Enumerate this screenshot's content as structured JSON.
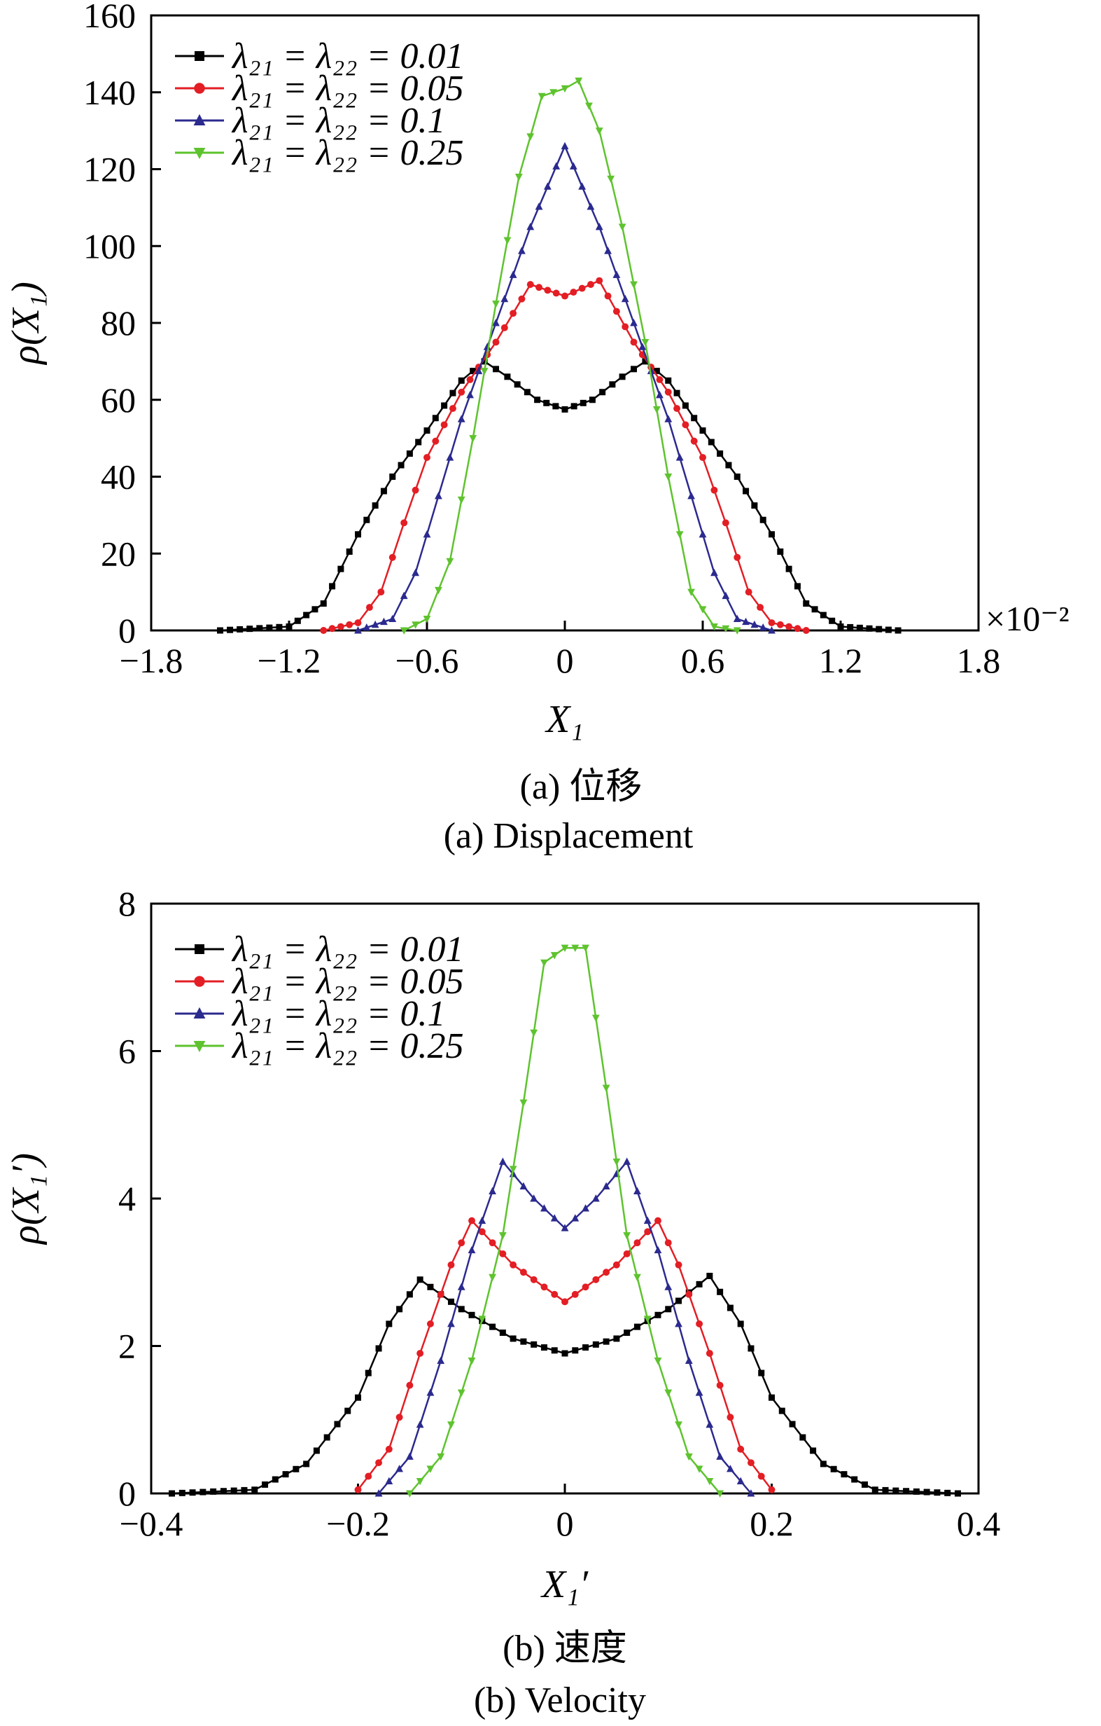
{
  "chart_data": [
    {
      "type": "line",
      "panel": "a",
      "caption_cn": "(a)  位移",
      "caption_en": "(a)  Displacement",
      "xlabel": "X₁",
      "ylabel": "ρ(X₁)",
      "x_multiplier": "×10⁻²",
      "xlim": [
        -1.8,
        1.8
      ],
      "ylim": [
        0,
        160
      ],
      "xticks": [
        "−1.8",
        "−1.2",
        "−0.6",
        "0",
        "0.6",
        "1.2",
        "1.8"
      ],
      "yticks": [
        "0",
        "20",
        "40",
        "60",
        "80",
        "100",
        "120",
        "140",
        "160"
      ],
      "legend_position": "top-left",
      "series": [
        {
          "name": "λ₂₁ = λ₂₂ = 0.01",
          "color": "#000000",
          "marker": "square",
          "points": [
            [
              -1.5,
              0
            ],
            [
              -1.2,
              1
            ],
            [
              -1.05,
              7
            ],
            [
              -0.9,
              25
            ],
            [
              -0.75,
              40
            ],
            [
              -0.6,
              52
            ],
            [
              -0.45,
              65
            ],
            [
              -0.35,
              70
            ],
            [
              -0.25,
              66
            ],
            [
              -0.12,
              60
            ],
            [
              0,
              57.5
            ],
            [
              0.12,
              60
            ],
            [
              0.25,
              66
            ],
            [
              0.35,
              70
            ],
            [
              0.45,
              65
            ],
            [
              0.6,
              52
            ],
            [
              0.75,
              40
            ],
            [
              0.9,
              25
            ],
            [
              1.05,
              7
            ],
            [
              1.2,
              1
            ],
            [
              1.45,
              0
            ]
          ]
        },
        {
          "name": "λ₂₁ = λ₂₂ = 0.05",
          "color": "#e31e24",
          "marker": "circle",
          "points": [
            [
              -1.05,
              0
            ],
            [
              -0.9,
              2
            ],
            [
              -0.8,
              10
            ],
            [
              -0.7,
              28
            ],
            [
              -0.6,
              45
            ],
            [
              -0.45,
              62
            ],
            [
              -0.3,
              75
            ],
            [
              -0.15,
              90
            ],
            [
              0,
              87
            ],
            [
              0.15,
              91
            ],
            [
              0.3,
              75
            ],
            [
              0.45,
              62
            ],
            [
              0.6,
              45
            ],
            [
              0.7,
              28
            ],
            [
              0.8,
              10
            ],
            [
              0.9,
              2
            ],
            [
              1.05,
              0
            ]
          ]
        },
        {
          "name": "λ₂₁ = λ₂₂ = 0.1",
          "color": "#2b2a8f",
          "marker": "triangle-up",
          "points": [
            [
              -0.9,
              0
            ],
            [
              -0.75,
              3
            ],
            [
              -0.65,
              15
            ],
            [
              -0.55,
              35
            ],
            [
              -0.45,
              55
            ],
            [
              -0.3,
              80
            ],
            [
              -0.15,
              105
            ],
            [
              0,
              126
            ],
            [
              0.15,
              105
            ],
            [
              0.3,
              80
            ],
            [
              0.45,
              55
            ],
            [
              0.55,
              35
            ],
            [
              0.65,
              15
            ],
            [
              0.75,
              3
            ],
            [
              0.9,
              0
            ]
          ]
        },
        {
          "name": "λ₂₁ = λ₂₂ = 0.25",
          "color": "#5ec32e",
          "marker": "triangle-down",
          "points": [
            [
              -0.7,
              0
            ],
            [
              -0.6,
              3
            ],
            [
              -0.5,
              18
            ],
            [
              -0.4,
              50
            ],
            [
              -0.3,
              85
            ],
            [
              -0.2,
              118
            ],
            [
              -0.1,
              139
            ],
            [
              0,
              141
            ],
            [
              0.06,
              143
            ],
            [
              0.15,
              130
            ],
            [
              0.25,
              105
            ],
            [
              0.35,
              75
            ],
            [
              0.45,
              40
            ],
            [
              0.55,
              10
            ],
            [
              0.65,
              1
            ],
            [
              0.75,
              0
            ]
          ]
        }
      ]
    },
    {
      "type": "line",
      "panel": "b",
      "caption_cn": "(b)  速度",
      "caption_en": "(b)  Velocity",
      "xlabel": "X₁′",
      "ylabel": "ρ(X₁′)",
      "xlim": [
        -0.4,
        0.4
      ],
      "ylim": [
        0,
        8
      ],
      "xticks": [
        "−0.4",
        "−0.2",
        "0",
        "0.2",
        "0.4"
      ],
      "yticks": [
        "0",
        "2",
        "4",
        "6",
        "8"
      ],
      "legend_position": "top-left",
      "series": [
        {
          "name": "λ₂₁ = λ₂₂ = 0.01",
          "color": "#000000",
          "marker": "square",
          "points": [
            [
              -0.38,
              0
            ],
            [
              -0.3,
              0.05
            ],
            [
              -0.25,
              0.4
            ],
            [
              -0.2,
              1.3
            ],
            [
              -0.17,
              2.3
            ],
            [
              -0.14,
              2.9
            ],
            [
              -0.1,
              2.5
            ],
            [
              -0.05,
              2.1
            ],
            [
              0,
              1.9
            ],
            [
              0.05,
              2.1
            ],
            [
              0.1,
              2.5
            ],
            [
              0.14,
              2.95
            ],
            [
              0.17,
              2.3
            ],
            [
              0.2,
              1.3
            ],
            [
              0.25,
              0.4
            ],
            [
              0.3,
              0.05
            ],
            [
              0.38,
              0
            ]
          ]
        },
        {
          "name": "λ₂₁ = λ₂₂ = 0.05",
          "color": "#e31e24",
          "marker": "circle",
          "points": [
            [
              -0.2,
              0.05
            ],
            [
              -0.17,
              0.6
            ],
            [
              -0.14,
              1.9
            ],
            [
              -0.11,
              3.1
            ],
            [
              -0.09,
              3.7
            ],
            [
              -0.05,
              3.1
            ],
            [
              0,
              2.6
            ],
            [
              0.05,
              3.1
            ],
            [
              0.09,
              3.7
            ],
            [
              0.11,
              3.1
            ],
            [
              0.14,
              1.9
            ],
            [
              0.17,
              0.6
            ],
            [
              0.2,
              0.05
            ]
          ]
        },
        {
          "name": "λ₂₁ = λ₂₂ = 0.1",
          "color": "#2b2a8f",
          "marker": "triangle-up",
          "points": [
            [
              -0.18,
              0
            ],
            [
              -0.15,
              0.5
            ],
            [
              -0.12,
              1.8
            ],
            [
              -0.09,
              3.3
            ],
            [
              -0.06,
              4.5
            ],
            [
              -0.03,
              4
            ],
            [
              0,
              3.6
            ],
            [
              0.03,
              4
            ],
            [
              0.06,
              4.5
            ],
            [
              0.09,
              3.3
            ],
            [
              0.12,
              1.8
            ],
            [
              0.15,
              0.5
            ],
            [
              0.18,
              0
            ]
          ]
        },
        {
          "name": "λ₂₁ = λ₂₂ = 0.25",
          "color": "#5ec32e",
          "marker": "triangle-down",
          "points": [
            [
              -0.15,
              0
            ],
            [
              -0.12,
              0.5
            ],
            [
              -0.09,
              1.8
            ],
            [
              -0.06,
              3.5
            ],
            [
              -0.04,
              5.3
            ],
            [
              -0.02,
              7.2
            ],
            [
              0,
              7.4
            ],
            [
              0.02,
              7.4
            ],
            [
              0.04,
              5.5
            ],
            [
              0.06,
              3.5
            ],
            [
              0.09,
              1.8
            ],
            [
              0.12,
              0.5
            ],
            [
              0.15,
              0
            ]
          ]
        }
      ]
    }
  ]
}
